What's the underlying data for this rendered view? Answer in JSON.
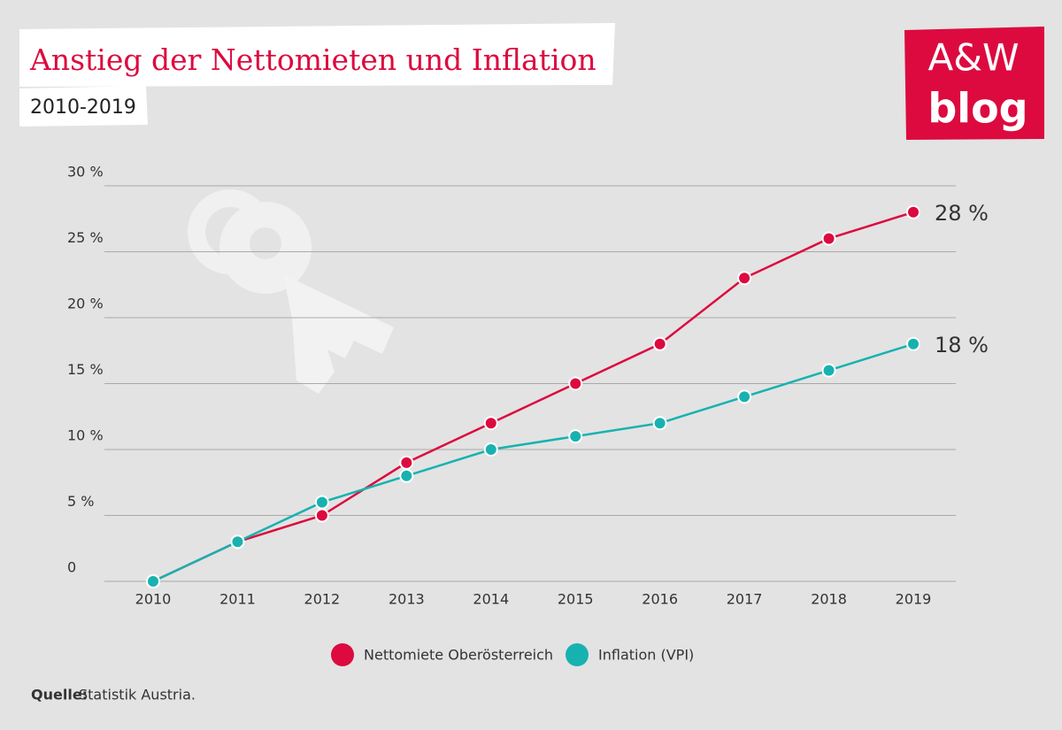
{
  "chart_data": {
    "type": "line",
    "title": "Anstieg der Nettomieten und Inflation",
    "subtitle": "2010-2019",
    "logo": {
      "line1": "A&W",
      "line2": "blog"
    },
    "source": {
      "label": "Quelle:",
      "text": "Statistik Austria."
    },
    "categories": [
      "2010",
      "2011",
      "2012",
      "2013",
      "2014",
      "2015",
      "2016",
      "2017",
      "2018",
      "2019"
    ],
    "series": [
      {
        "name": "Nettomiete Oberösterreich",
        "color": "#dc0a3f",
        "values": [
          0,
          3,
          5,
          9,
          12,
          15,
          18,
          23,
          26,
          28
        ],
        "value_labels": [
          null,
          null,
          null,
          null,
          null,
          null,
          null,
          null,
          null,
          "28 %"
        ]
      },
      {
        "name": "Inflation (VPI)",
        "color": "#17b2b0",
        "values": [
          0,
          3,
          6,
          8,
          10,
          11,
          12,
          14,
          16,
          18
        ],
        "value_labels": [
          null,
          null,
          null,
          null,
          null,
          null,
          null,
          null,
          null,
          "18 %"
        ]
      }
    ],
    "ylim": [
      0,
      30
    ],
    "yticks": [
      0,
      {
        "value": 5,
        "label": "5 %"
      },
      {
        "value": 10,
        "label": "10 %"
      },
      {
        "value": 15,
        "label": "15 %"
      },
      {
        "value": 20,
        "label": "20 %"
      },
      {
        "value": 25,
        "label": "25 %"
      },
      {
        "value": 30,
        "label": "30 %"
      }
    ],
    "grid": true,
    "legend": "bottom"
  }
}
